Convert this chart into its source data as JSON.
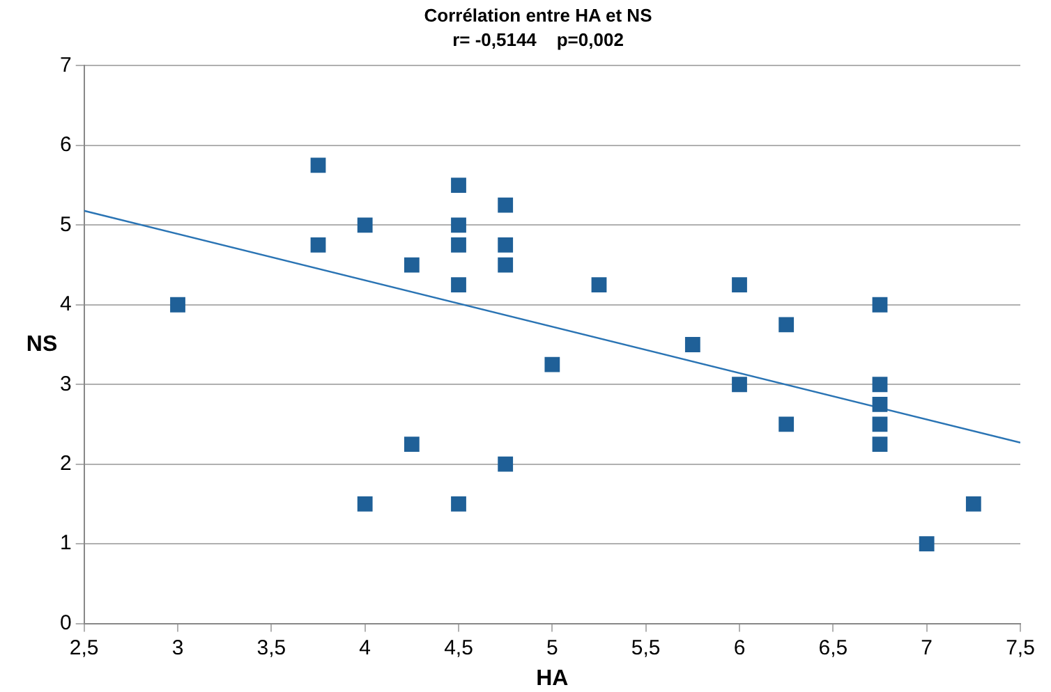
{
  "chart_data": {
    "type": "scatter",
    "title": "Corrélation entre HA et NS",
    "subtitle": "r= -0,5144    p=0,002",
    "xlabel": "HA",
    "ylabel": "NS",
    "xlim": [
      2.5,
      7.5
    ],
    "xticks": [
      {
        "value": 2.5,
        "label": "2,5"
      },
      3,
      {
        "value": 3.5,
        "label": "3,5"
      },
      4,
      {
        "value": 4.5,
        "label": "4,5"
      },
      5,
      {
        "value": 5.5,
        "label": "5,5"
      },
      6,
      {
        "value": 6.5,
        "label": "6,5"
      },
      7,
      {
        "value": 7.5,
        "label": "7,5"
      }
    ],
    "ylim": [
      0,
      7
    ],
    "yticks": [
      0,
      1,
      2,
      3,
      4,
      5,
      6,
      7
    ],
    "grid": "y",
    "legend": false,
    "series": [
      {
        "type": "scatter",
        "marker": "square",
        "color": "#1f6098",
        "x": [
          3,
          3.75,
          3.75,
          4,
          4,
          4.25,
          4.25,
          4.5,
          4.5,
          4.5,
          4.5,
          4.5,
          4.75,
          4.75,
          4.75,
          4.75,
          5,
          5.25,
          5.75,
          6,
          6,
          6.25,
          6.25,
          6.75,
          6.75,
          6.75,
          6.75,
          6.75,
          7,
          7.25
        ],
        "values": [
          4,
          5.75,
          4.75,
          5,
          1.5,
          4.5,
          2.25,
          5.5,
          5,
          4.75,
          4.25,
          1.5,
          5.25,
          4.75,
          4.5,
          2,
          3.25,
          4.25,
          3.5,
          4.25,
          3,
          3.75,
          2.5,
          4,
          3,
          2.75,
          2.5,
          2.25,
          1,
          1.5
        ]
      },
      {
        "type": "line",
        "marker": "none",
        "color": "#2a74b4",
        "x": [
          2.5,
          7.5
        ],
        "values": [
          5.18,
          2.27
        ]
      }
    ]
  }
}
